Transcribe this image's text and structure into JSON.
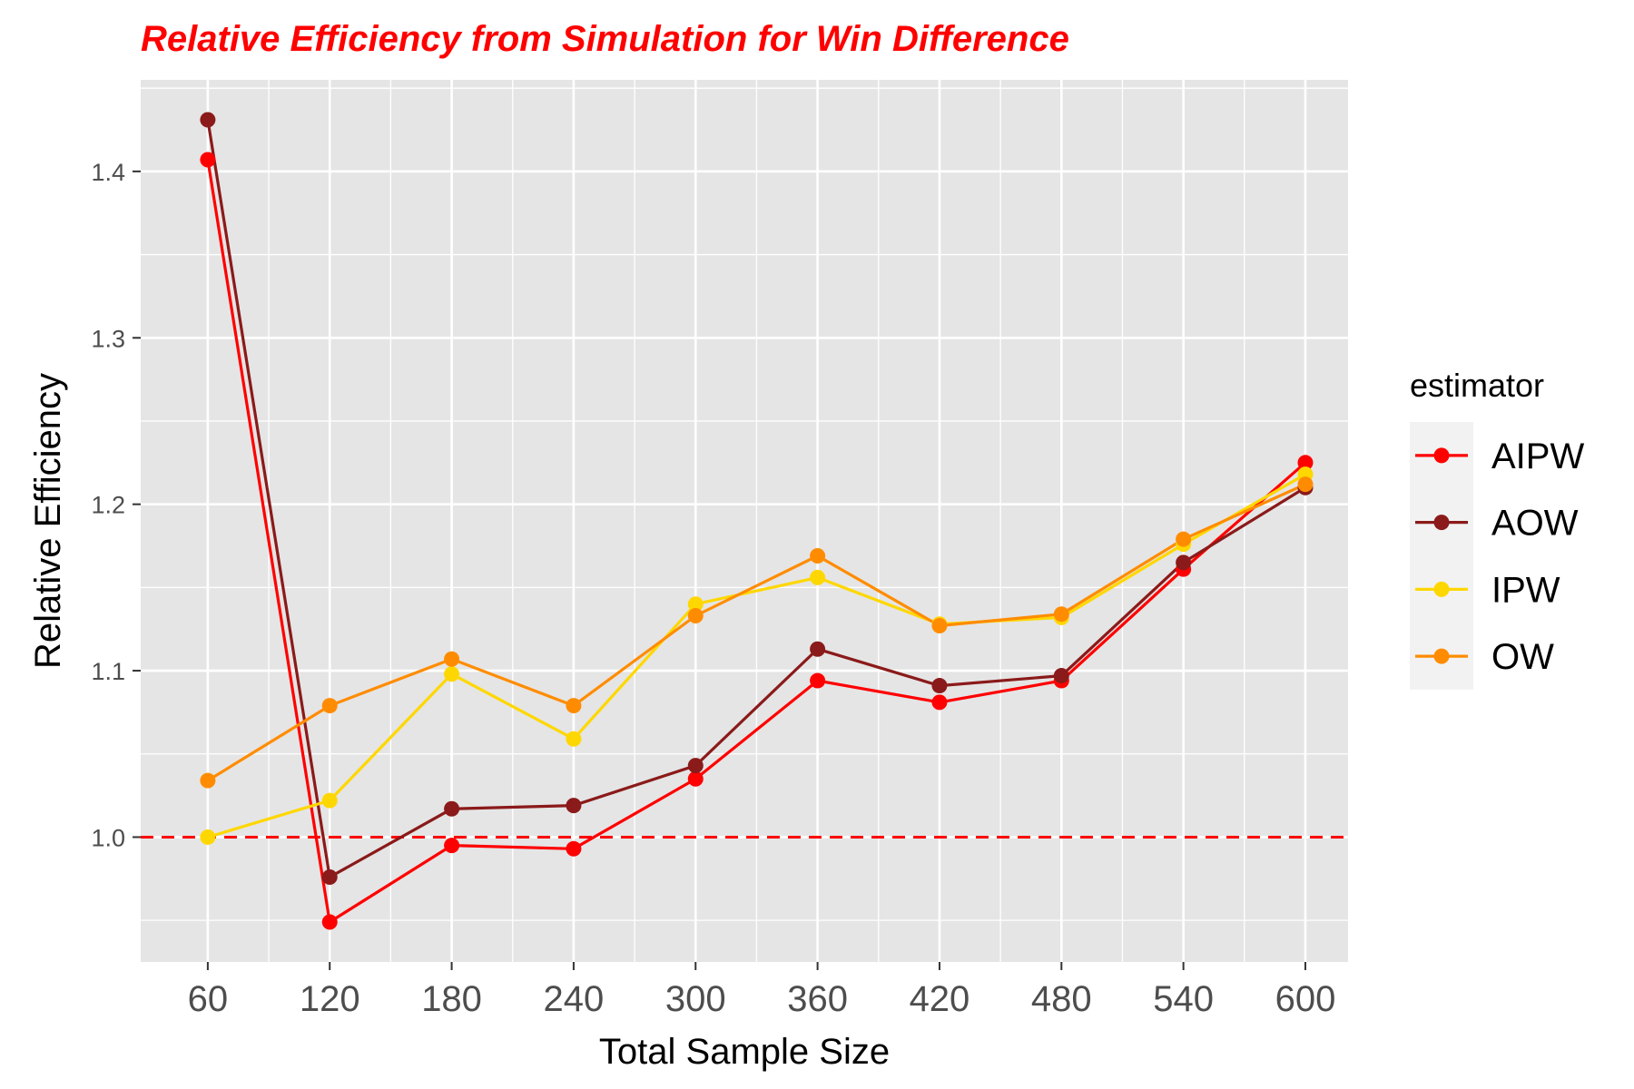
{
  "chart_data": {
    "type": "line",
    "title": "Relative Efficiency from Simulation for Win Difference",
    "title_color": "#ff0000",
    "xlabel": "Total Sample Size",
    "ylabel": "Relative Efficiency",
    "x": [
      60,
      120,
      180,
      240,
      300,
      360,
      420,
      480,
      540,
      600
    ],
    "x_ticks": [
      "60",
      "120",
      "180",
      "240",
      "300",
      "360",
      "420",
      "480",
      "540",
      "600"
    ],
    "y_ticks": [
      "1.0",
      "1.1",
      "1.2",
      "1.3",
      "1.4"
    ],
    "xlim": [
      27,
      621
    ],
    "ylim": [
      0.925,
      1.455
    ],
    "reference_line": {
      "y": 1.0,
      "style": "dashed",
      "color": "#ff0000"
    },
    "grid": true,
    "legend": {
      "title": "estimator",
      "position": "right"
    },
    "series": [
      {
        "name": "AIPW",
        "color": "#ff0000",
        "values": [
          1.407,
          0.949,
          0.995,
          0.993,
          1.035,
          1.094,
          1.081,
          1.094,
          1.161,
          1.225
        ]
      },
      {
        "name": "AOW",
        "color": "#8b1a1a",
        "values": [
          1.431,
          0.976,
          1.017,
          1.019,
          1.043,
          1.113,
          1.091,
          1.097,
          1.165,
          1.21
        ]
      },
      {
        "name": "IPW",
        "color": "#ffd700",
        "values": [
          1.0,
          1.022,
          1.098,
          1.059,
          1.14,
          1.156,
          1.128,
          1.132,
          1.176,
          1.218
        ]
      },
      {
        "name": "OW",
        "color": "#ff8c00",
        "values": [
          1.034,
          1.079,
          1.107,
          1.079,
          1.133,
          1.169,
          1.127,
          1.134,
          1.179,
          1.212
        ]
      }
    ]
  }
}
